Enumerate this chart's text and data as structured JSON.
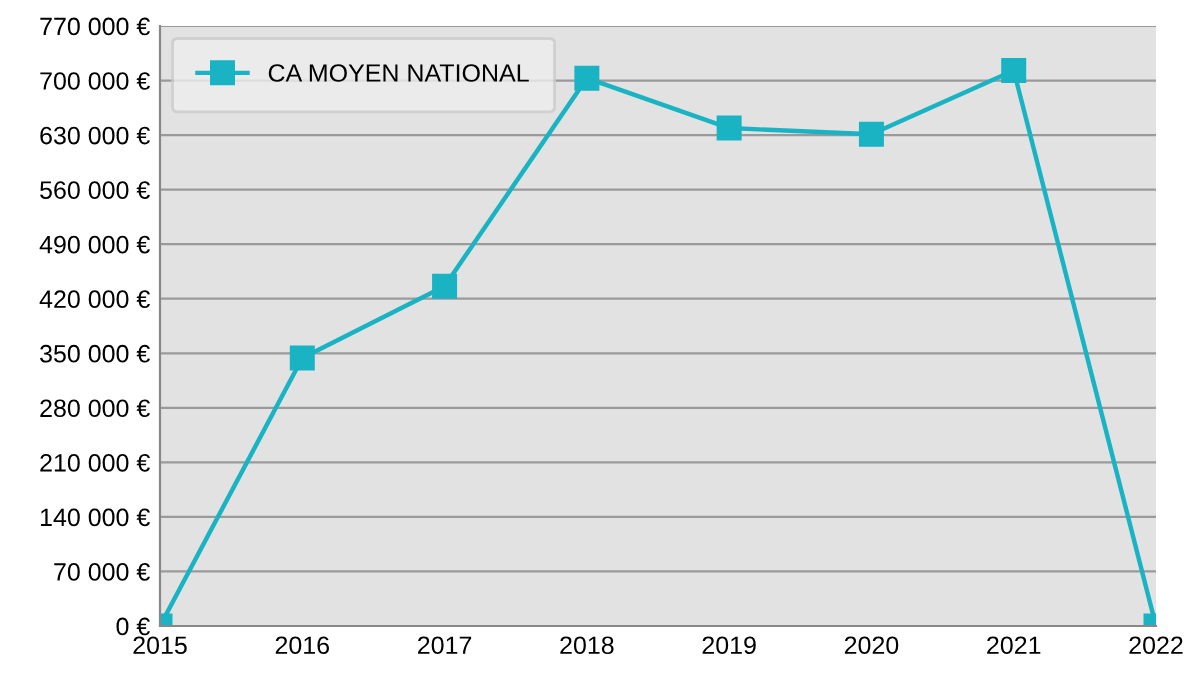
{
  "chart_data": {
    "type": "line",
    "x": [
      2015,
      2016,
      2017,
      2018,
      2019,
      2020,
      2021,
      2022
    ],
    "series": [
      {
        "name": "CA MOYEN NATIONAL",
        "color": "#1ab3c3",
        "values": [
          0,
          344000,
          436000,
          703000,
          639000,
          631000,
          713000,
          0
        ]
      }
    ],
    "xlim": [
      2015,
      2022
    ],
    "xticks": [
      2015,
      2016,
      2017,
      2018,
      2019,
      2020,
      2021,
      2022
    ],
    "ylim": [
      0,
      770000
    ],
    "yticks": [
      {
        "value": 0,
        "label": "0 €"
      },
      {
        "value": 70000,
        "label": "70 000 €"
      },
      {
        "value": 140000,
        "label": "140 000 €"
      },
      {
        "value": 210000,
        "label": "210 000 €"
      },
      {
        "value": 280000,
        "label": "280 000 €"
      },
      {
        "value": 350000,
        "label": "350 000 €"
      },
      {
        "value": 420000,
        "label": "420 000 €"
      },
      {
        "value": 490000,
        "label": "490 000 €"
      },
      {
        "value": 560000,
        "label": "560 000 €"
      },
      {
        "value": 630000,
        "label": "630 000 €"
      },
      {
        "value": 700000,
        "label": "700 000 €"
      },
      {
        "value": 770000,
        "label": "770 000 €"
      }
    ],
    "grid": "y",
    "legend": "top left",
    "marker": "square",
    "line_style": "solid"
  }
}
